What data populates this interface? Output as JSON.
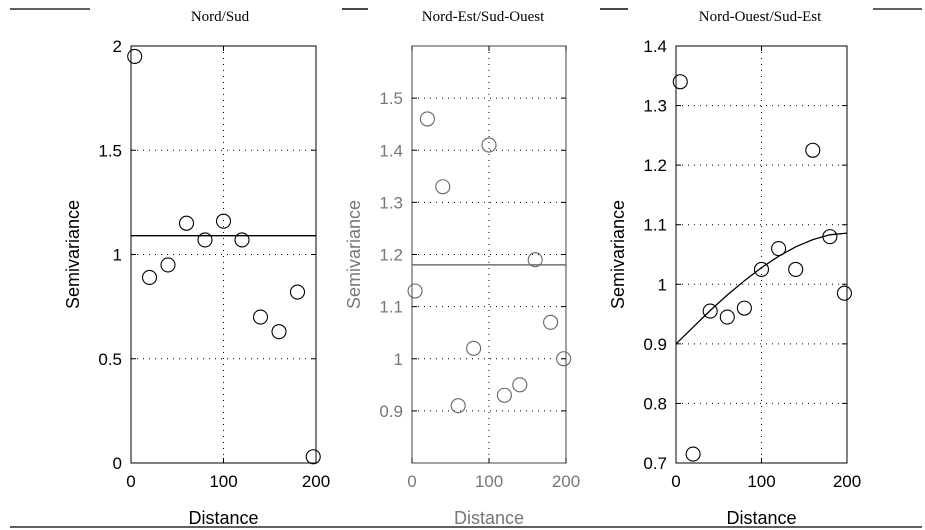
{
  "chart_data": [
    {
      "type": "scatter",
      "title": "Nord/Sud",
      "xlabel": "Distance",
      "ylabel": "Semivariance",
      "xlim": [
        0,
        200
      ],
      "ylim": [
        0,
        2
      ],
      "xticks": [
        "0",
        "100",
        "200"
      ],
      "yticks": [
        "0",
        "0.5",
        "1",
        "1.5",
        "2"
      ],
      "grid": true,
      "series": [
        {
          "x": [
            4,
            20,
            40,
            60,
            80,
            100,
            120,
            140,
            160,
            180,
            197
          ],
          "y": [
            1.95,
            0.89,
            0.95,
            1.15,
            1.07,
            1.16,
            1.07,
            0.7,
            0.63,
            0.82,
            0.03
          ]
        }
      ],
      "model_line": {
        "x": [
          0,
          200
        ],
        "y": [
          1.09,
          1.09
        ]
      }
    },
    {
      "type": "scatter",
      "title": "Nord-Est/Sud-Ouest",
      "xlabel": "Distance",
      "ylabel": "Semivariance",
      "xlim": [
        0,
        200
      ],
      "ylim": [
        0.8,
        1.6
      ],
      "xticks": [
        "0",
        "100",
        "200"
      ],
      "yticks": [
        "0.9",
        "1",
        "1.1",
        "1.2",
        "1.3",
        "1.4",
        "1.5"
      ],
      "grid": true,
      "series": [
        {
          "x": [
            4,
            20,
            40,
            60,
            80,
            100,
            120,
            140,
            160,
            180,
            197
          ],
          "y": [
            1.13,
            1.46,
            1.33,
            0.91,
            1.02,
            1.41,
            0.93,
            0.95,
            1.19,
            1.07,
            1.0
          ]
        }
      ],
      "model_line": {
        "x": [
          0,
          200
        ],
        "y": [
          1.18,
          1.18
        ]
      }
    },
    {
      "type": "scatter",
      "title": "Nord-Ouest/Sud-Est",
      "xlabel": "Distance",
      "ylabel": "Semivariance",
      "xlim": [
        0,
        200
      ],
      "ylim": [
        0.7,
        1.4
      ],
      "xticks": [
        "0",
        "100",
        "200"
      ],
      "yticks": [
        "0.7",
        "0.8",
        "0.9",
        "1",
        "1.1",
        "1.2",
        "1.3",
        "1.4"
      ],
      "grid": true,
      "series": [
        {
          "x": [
            5,
            20,
            40,
            60,
            80,
            100,
            120,
            140,
            160,
            180,
            197
          ],
          "y": [
            1.34,
            0.715,
            0.955,
            0.945,
            0.96,
            1.025,
            1.06,
            1.025,
            1.225,
            1.08,
            0.985
          ]
        }
      ],
      "model_line": {
        "x": [
          0,
          20,
          40,
          60,
          80,
          100,
          120,
          140,
          160,
          180,
          200
        ],
        "y": [
          0.9,
          0.928,
          0.956,
          0.982,
          1.006,
          1.028,
          1.047,
          1.063,
          1.075,
          1.083,
          1.086
        ]
      }
    }
  ]
}
